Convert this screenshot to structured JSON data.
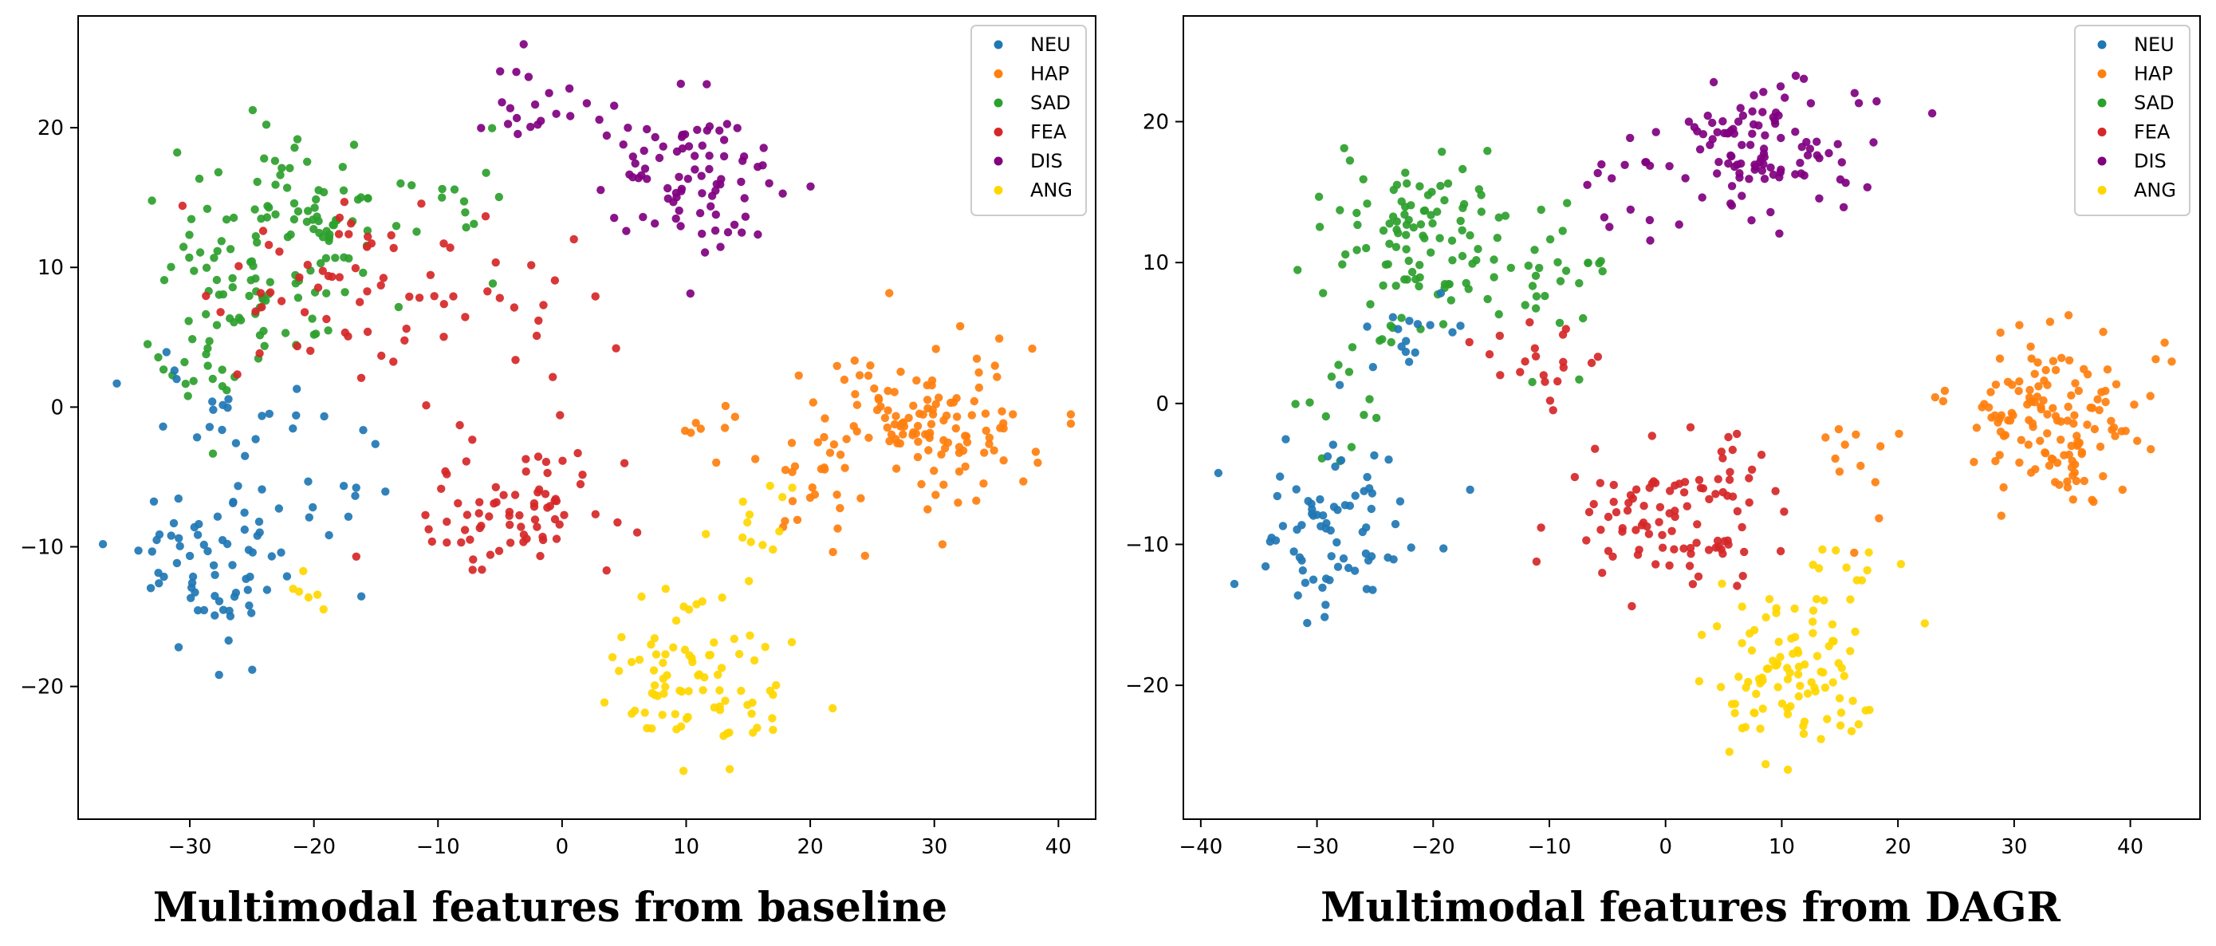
{
  "chart_data": [
    {
      "type": "scatter",
      "title": "Multimodal features from baseline",
      "xlabel": "",
      "ylabel": "",
      "xlim": [
        -39,
        43
      ],
      "ylim": [
        -29.5,
        28
      ],
      "xticks": [
        -30,
        -20,
        -10,
        0,
        10,
        20,
        30,
        40
      ],
      "yticks": [
        -20,
        -10,
        0,
        10,
        20
      ],
      "tick_labels_x": [
        "−30",
        "−20",
        "−10",
        "0",
        "10",
        "20",
        "30",
        "40"
      ],
      "tick_labels_y": [
        "−20",
        "−10",
        "0",
        "10",
        "20"
      ],
      "legend_position": "top-right",
      "seed": 7,
      "series": [
        {
          "name": "NEU",
          "color": "#1f77b4",
          "clusters": [
            [
              -28,
              -11,
              5,
              4,
              70
            ],
            [
              -27,
              -1,
              4,
              3,
              20
            ],
            [
              -18,
              -6,
              3,
              3,
              12
            ]
          ]
        },
        {
          "name": "HAP",
          "color": "#ff7f0e",
          "clusters": [
            [
              30,
              -1,
              6,
              4,
              130
            ],
            [
              20,
              -6,
              3,
              4,
              20
            ],
            [
              12,
              -2,
              4,
              2,
              8
            ]
          ]
        },
        {
          "name": "SAD",
          "color": "#2ca02c",
          "clusters": [
            [
              -24,
              10,
              6,
              5,
              90
            ],
            [
              -20,
              15,
              5,
              3,
              40
            ],
            [
              -29,
              3,
              3,
              4,
              20
            ],
            [
              -8,
              14,
              3,
              4,
              12
            ]
          ]
        },
        {
          "name": "FEA",
          "color": "#d62728",
          "clusters": [
            [
              -4,
              -7,
              5,
              4,
              75
            ],
            [
              -18,
              8,
              7,
              5,
              60
            ],
            [
              -4,
              8,
              4,
              4,
              15
            ]
          ]
        },
        {
          "name": "DIS",
          "color": "#800080",
          "clusters": [
            [
              10,
              17,
              5,
              4,
              85
            ],
            [
              -2,
              22,
              4,
              2,
              20
            ]
          ]
        },
        {
          "name": "ANG",
          "color": "#ffd700",
          "clusters": [
            [
              11,
              -19,
              5,
              4,
              85
            ],
            [
              15,
              -8,
              3,
              3,
              12
            ],
            [
              -20,
              -13,
              2,
              2,
              6
            ]
          ]
        }
      ]
    },
    {
      "type": "scatter",
      "title": "Multimodal features from DAGR",
      "xlabel": "",
      "ylabel": "",
      "xlim": [
        -41.5,
        46
      ],
      "ylim": [
        -29.5,
        27.5
      ],
      "xticks": [
        -40,
        -30,
        -20,
        -10,
        0,
        10,
        20,
        30,
        40
      ],
      "yticks": [
        -20,
        -10,
        0,
        10,
        20
      ],
      "tick_labels_x": [
        "−40",
        "−30",
        "−20",
        "−10",
        "0",
        "10",
        "20",
        "30",
        "40"
      ],
      "tick_labels_y": [
        "−20",
        "−10",
        "0",
        "10",
        "20"
      ],
      "legend_position": "top-right",
      "seed": 19,
      "series": [
        {
          "name": "NEU",
          "color": "#1f77b4",
          "clusters": [
            [
              -29,
              -9,
              5,
              5,
              75
            ],
            [
              -22,
              4,
              3,
              3,
              15
            ]
          ]
        },
        {
          "name": "HAP",
          "color": "#ff7f0e",
          "clusters": [
            [
              33,
              -1,
              6,
              4,
              140
            ],
            [
              17,
              -4,
              3,
              4,
              12
            ]
          ]
        },
        {
          "name": "SAD",
          "color": "#2ca02c",
          "clusters": [
            [
              -22,
              11,
              6,
              5,
              110
            ],
            [
              -8,
              10,
              4,
              5,
              25
            ],
            [
              -28,
              0,
              3,
              4,
              10
            ]
          ]
        },
        {
          "name": "FEA",
          "color": "#d62728",
          "clusters": [
            [
              1,
              -8,
              7,
              4,
              100
            ],
            [
              -10,
              3,
              4,
              3,
              20
            ]
          ]
        },
        {
          "name": "DIS",
          "color": "#800080",
          "clusters": [
            [
              9,
              18,
              6,
              4,
              105
            ],
            [
              -3,
              16,
              3,
              4,
              15
            ]
          ]
        },
        {
          "name": "ANG",
          "color": "#ffd700",
          "clusters": [
            [
              11,
              -19,
              5,
              4,
              95
            ],
            [
              15,
              -11,
              4,
              3,
              15
            ]
          ]
        }
      ]
    }
  ]
}
